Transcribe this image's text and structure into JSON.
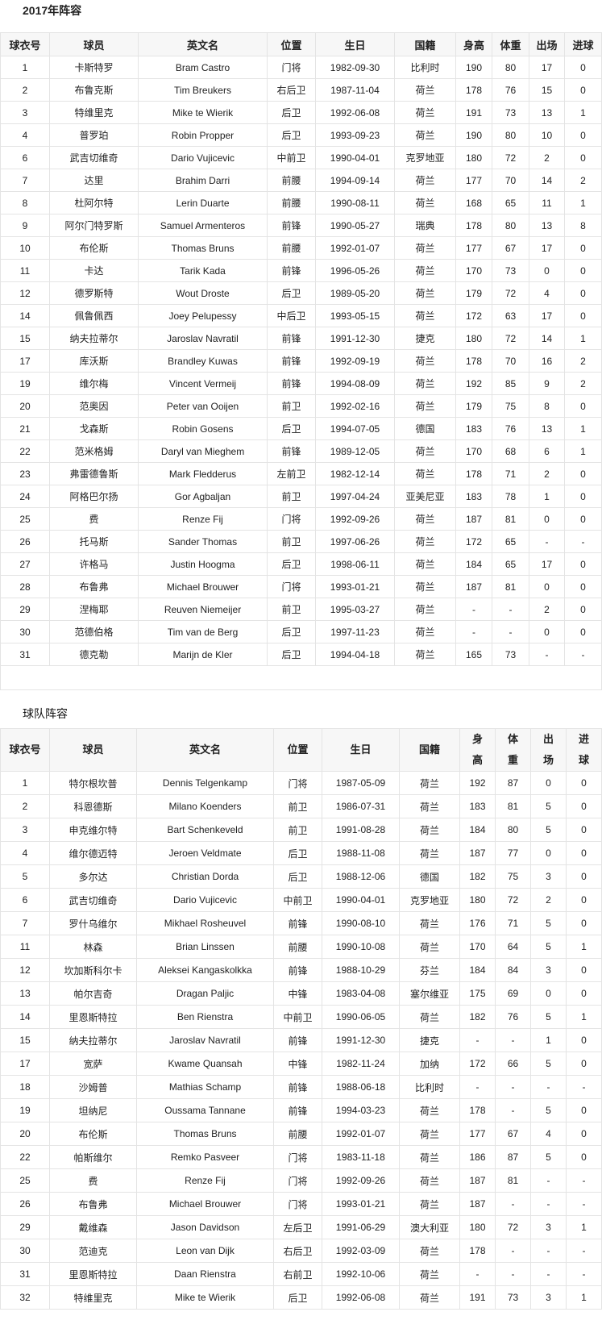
{
  "squad2017": {
    "title": "2017年阵容",
    "headers": [
      "球衣号",
      "球员",
      "英文名",
      "位置",
      "生日",
      "国籍",
      "身高",
      "体重",
      "出场",
      "进球"
    ],
    "rows": [
      [
        "1",
        "卡斯特罗",
        "Bram Castro",
        "门将",
        "1982-09-30",
        "比利时",
        "190",
        "80",
        "17",
        "0"
      ],
      [
        "2",
        "布鲁克斯",
        "Tim Breukers",
        "右后卫",
        "1987-11-04",
        "荷兰",
        "178",
        "76",
        "15",
        "0"
      ],
      [
        "3",
        "特维里克",
        "Mike te Wierik",
        "后卫",
        "1992-06-08",
        "荷兰",
        "191",
        "73",
        "13",
        "1"
      ],
      [
        "4",
        "普罗珀",
        "Robin Propper",
        "后卫",
        "1993-09-23",
        "荷兰",
        "190",
        "80",
        "10",
        "0"
      ],
      [
        "6",
        "武吉切维奇",
        "Dario Vujicevic",
        "中前卫",
        "1990-04-01",
        "克罗地亚",
        "180",
        "72",
        "2",
        "0"
      ],
      [
        "7",
        "达里",
        "Brahim Darri",
        "前腰",
        "1994-09-14",
        "荷兰",
        "177",
        "70",
        "14",
        "2"
      ],
      [
        "8",
        "杜阿尔特",
        "Lerin Duarte",
        "前腰",
        "1990-08-11",
        "荷兰",
        "168",
        "65",
        "11",
        "1"
      ],
      [
        "9",
        "阿尔门特罗斯",
        "Samuel Armenteros",
        "前锋",
        "1990-05-27",
        "瑞典",
        "178",
        "80",
        "13",
        "8"
      ],
      [
        "10",
        "布伦斯",
        "Thomas Bruns",
        "前腰",
        "1992-01-07",
        "荷兰",
        "177",
        "67",
        "17",
        "0"
      ],
      [
        "11",
        "卡达",
        "Tarik Kada",
        "前锋",
        "1996-05-26",
        "荷兰",
        "170",
        "73",
        "0",
        "0"
      ],
      [
        "12",
        "德罗斯特",
        "Wout Droste",
        "后卫",
        "1989-05-20",
        "荷兰",
        "179",
        "72",
        "4",
        "0"
      ],
      [
        "14",
        "佩鲁佩西",
        "Joey Pelupessy",
        "中后卫",
        "1993-05-15",
        "荷兰",
        "172",
        "63",
        "17",
        "0"
      ],
      [
        "15",
        "纳夫拉蒂尔",
        "Jaroslav Navratil",
        "前锋",
        "1991-12-30",
        "捷克",
        "180",
        "72",
        "14",
        "1"
      ],
      [
        "17",
        "库沃斯",
        "Brandley Kuwas",
        "前锋",
        "1992-09-19",
        "荷兰",
        "178",
        "70",
        "16",
        "2"
      ],
      [
        "19",
        "维尔梅",
        "Vincent Vermeij",
        "前锋",
        "1994-08-09",
        "荷兰",
        "192",
        "85",
        "9",
        "2"
      ],
      [
        "20",
        "范奥因",
        "Peter van Ooijen",
        "前卫",
        "1992-02-16",
        "荷兰",
        "179",
        "75",
        "8",
        "0"
      ],
      [
        "21",
        "戈森斯",
        "Robin Gosens",
        "后卫",
        "1994-07-05",
        "德国",
        "183",
        "76",
        "13",
        "1"
      ],
      [
        "22",
        "范米格姆",
        "Daryl van Mieghem",
        "前锋",
        "1989-12-05",
        "荷兰",
        "170",
        "68",
        "6",
        "1"
      ],
      [
        "23",
        "弗雷德鲁斯",
        "Mark Fledderus",
        "左前卫",
        "1982-12-14",
        "荷兰",
        "178",
        "71",
        "2",
        "0"
      ],
      [
        "24",
        "阿格巴尔扬",
        "Gor Agbaljan",
        "前卫",
        "1997-04-24",
        "亚美尼亚",
        "183",
        "78",
        "1",
        "0"
      ],
      [
        "25",
        "费",
        "Renze Fij",
        "门将",
        "1992-09-26",
        "荷兰",
        "187",
        "81",
        "0",
        "0"
      ],
      [
        "26",
        "托马斯",
        "Sander Thomas",
        "前卫",
        "1997-06-26",
        "荷兰",
        "172",
        "65",
        "-",
        "-"
      ],
      [
        "27",
        "许格马",
        "Justin Hoogma",
        "后卫",
        "1998-06-11",
        "荷兰",
        "184",
        "65",
        "17",
        "0"
      ],
      [
        "28",
        "布鲁弗",
        "Michael Brouwer",
        "门将",
        "1993-01-21",
        "荷兰",
        "187",
        "81",
        "0",
        "0"
      ],
      [
        "29",
        "涅梅耶",
        "Reuven Niemeijer",
        "前卫",
        "1995-03-27",
        "荷兰",
        "-",
        "-",
        "2",
        "0"
      ],
      [
        "30",
        "范德伯格",
        "Tim van de Berg",
        "后卫",
        "1997-11-23",
        "荷兰",
        "-",
        "-",
        "0",
        "0"
      ],
      [
        "31",
        "德克勒",
        "Marijn de Kler",
        "后卫",
        "1994-04-18",
        "荷兰",
        "165",
        "73",
        "-",
        "-"
      ]
    ]
  },
  "squadTeam": {
    "title": "球队阵容",
    "headers": [
      "球衣号",
      "球员",
      "英文名",
      "位置",
      "生日",
      "国籍",
      "身高",
      "体重",
      "出场",
      "进球"
    ],
    "rows": [
      [
        "1",
        "特尔根坎普",
        "Dennis Telgenkamp",
        "门将",
        "1987-05-09",
        "荷兰",
        "192",
        "87",
        "0",
        "0"
      ],
      [
        "2",
        "科恩德斯",
        "Milano Koenders",
        "前卫",
        "1986-07-31",
        "荷兰",
        "183",
        "81",
        "5",
        "0"
      ],
      [
        "3",
        "申克维尔特",
        "Bart Schenkeveld",
        "前卫",
        "1991-08-28",
        "荷兰",
        "184",
        "80",
        "5",
        "0"
      ],
      [
        "4",
        "维尔德迈特",
        "Jeroen Veldmate",
        "后卫",
        "1988-11-08",
        "荷兰",
        "187",
        "77",
        "0",
        "0"
      ],
      [
        "5",
        "多尔达",
        "Christian Dorda",
        "后卫",
        "1988-12-06",
        "德国",
        "182",
        "75",
        "3",
        "0"
      ],
      [
        "6",
        "武吉切维奇",
        "Dario Vujicevic",
        "中前卫",
        "1990-04-01",
        "克罗地亚",
        "180",
        "72",
        "2",
        "0"
      ],
      [
        "7",
        "罗什乌维尔",
        "Mikhael Rosheuvel",
        "前锋",
        "1990-08-10",
        "荷兰",
        "176",
        "71",
        "5",
        "0"
      ],
      [
        "11",
        "林森",
        "Brian Linssen",
        "前腰",
        "1990-10-08",
        "荷兰",
        "170",
        "64",
        "5",
        "1"
      ],
      [
        "12",
        "坎加斯科尔卡",
        "Aleksei Kangaskolkka",
        "前锋",
        "1988-10-29",
        "芬兰",
        "184",
        "84",
        "3",
        "0"
      ],
      [
        "13",
        "帕尔吉奇",
        "Dragan Paljic",
        "中锋",
        "1983-04-08",
        "塞尔维亚",
        "175",
        "69",
        "0",
        "0"
      ],
      [
        "14",
        "里恩斯特拉",
        "Ben Rienstra",
        "中前卫",
        "1990-06-05",
        "荷兰",
        "182",
        "76",
        "5",
        "1"
      ],
      [
        "15",
        "纳夫拉蒂尔",
        "Jaroslav Navratil",
        "前锋",
        "1991-12-30",
        "捷克",
        "-",
        "-",
        "1",
        "0"
      ],
      [
        "17",
        "宽萨",
        "Kwame Quansah",
        "中锋",
        "1982-11-24",
        "加纳",
        "172",
        "66",
        "5",
        "0"
      ],
      [
        "18",
        "沙姆普",
        "Mathias Schamp",
        "前锋",
        "1988-06-18",
        "比利时",
        "-",
        "-",
        "-",
        "-"
      ],
      [
        "19",
        "坦纳尼",
        "Oussama Tannane",
        "前锋",
        "1994-03-23",
        "荷兰",
        "178",
        "-",
        "5",
        "0"
      ],
      [
        "20",
        "布伦斯",
        "Thomas Bruns",
        "前腰",
        "1992-01-07",
        "荷兰",
        "177",
        "67",
        "4",
        "0"
      ],
      [
        "22",
        "帕斯维尔",
        "Remko Pasveer",
        "门将",
        "1983-11-18",
        "荷兰",
        "186",
        "87",
        "5",
        "0"
      ],
      [
        "25",
        "费",
        "Renze Fij",
        "门将",
        "1992-09-26",
        "荷兰",
        "187",
        "81",
        "-",
        "-"
      ],
      [
        "26",
        "布鲁弗",
        "Michael Brouwer",
        "门将",
        "1993-01-21",
        "荷兰",
        "187",
        "-",
        "-",
        "-"
      ],
      [
        "29",
        "戴维森",
        "Jason Davidson",
        "左后卫",
        "1991-06-29",
        "澳大利亚",
        "180",
        "72",
        "3",
        "1"
      ],
      [
        "30",
        "范迪克",
        "Leon van Dijk",
        "右后卫",
        "1992-03-09",
        "荷兰",
        "178",
        "-",
        "-",
        "-"
      ],
      [
        "31",
        "里恩斯特拉",
        "Daan Rienstra",
        "右前卫",
        "1992-10-06",
        "荷兰",
        "-",
        "-",
        "-",
        "-"
      ],
      [
        "32",
        "特维里克",
        "Mike te Wierik",
        "后卫",
        "1992-06-08",
        "荷兰",
        "191",
        "73",
        "3",
        "1"
      ]
    ]
  }
}
